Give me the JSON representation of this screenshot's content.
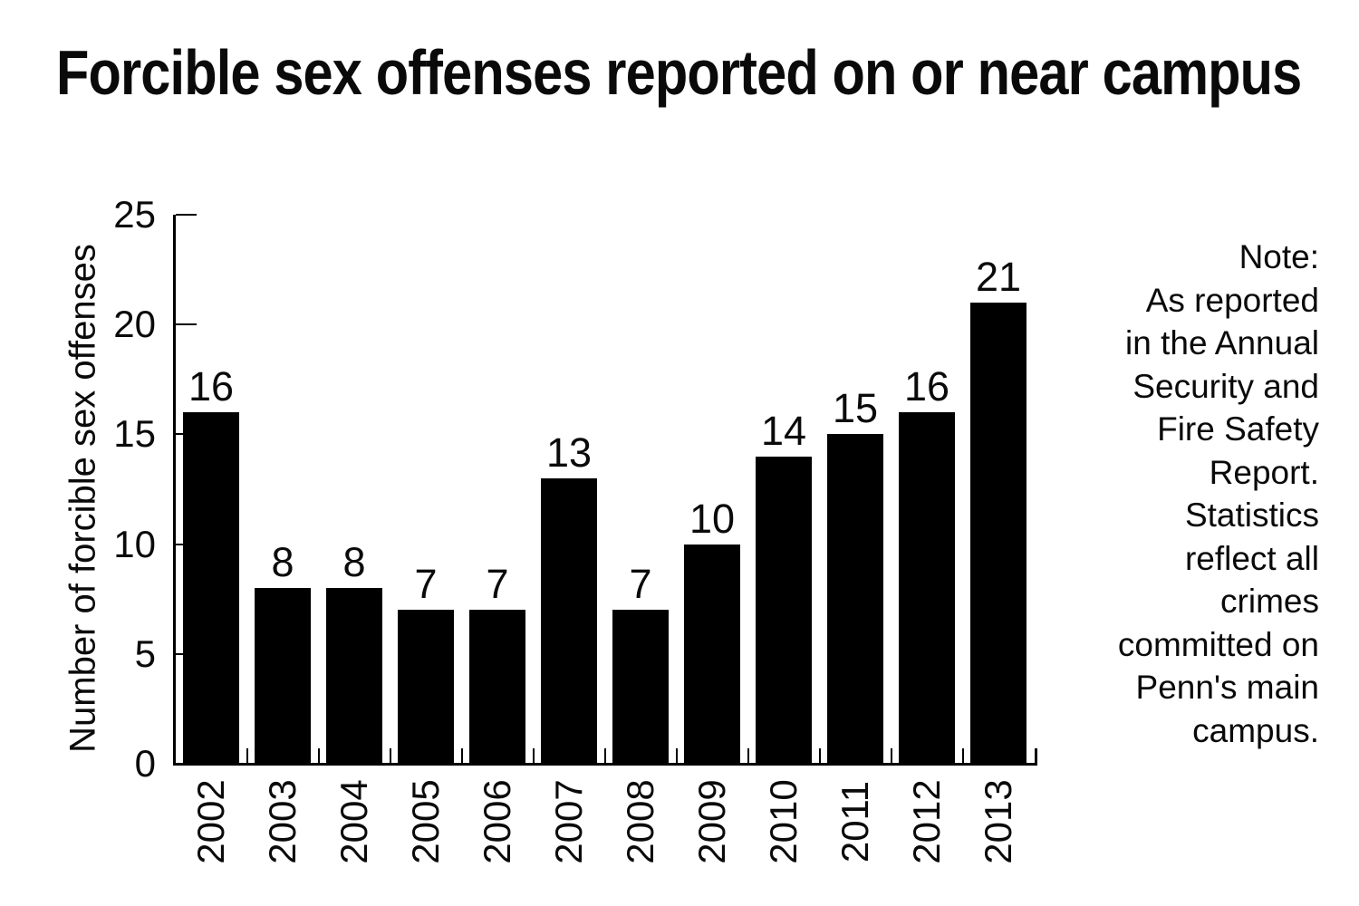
{
  "title": "Forcible sex offenses reported on or near campus",
  "note": {
    "text": "Note:\nAs reported\nin the Annual\nSecurity and\nFire Safety\nReport.\nStatistics\nreflect all\ncrimes\ncommitted on\nPenn's main\ncampus."
  },
  "chart_data": {
    "type": "bar",
    "title": "Forcible sex offenses reported on or near campus",
    "categories": [
      "2002",
      "2003",
      "2004",
      "2005",
      "2006",
      "2007",
      "2008",
      "2009",
      "2010",
      "2011",
      "2012",
      "2013"
    ],
    "values": [
      16,
      8,
      8,
      7,
      7,
      13,
      7,
      10,
      14,
      15,
      16,
      21
    ],
    "xlabel": "",
    "ylabel": "Number of forcible sex offenses",
    "yticks": [
      0,
      5,
      10,
      15,
      20,
      25
    ],
    "ylim": [
      0,
      25
    ],
    "bar_color": "#000000",
    "background_color": "#ffffff",
    "grid": false,
    "value_labels": true,
    "legend": "none"
  }
}
